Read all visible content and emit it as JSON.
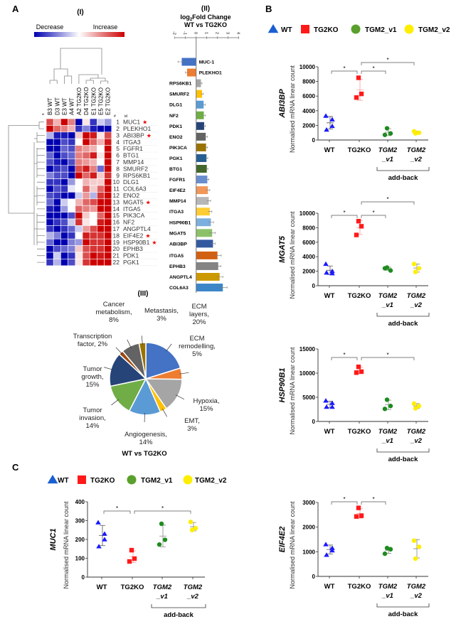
{
  "panel_labels": {
    "a": "A",
    "b": "B",
    "c": "C"
  },
  "legend": [
    {
      "label": "WT",
      "marker": "triangle",
      "color": "#1a5fd0"
    },
    {
      "label": "TG2KO",
      "marker": "square",
      "color": "#ff1a1a"
    },
    {
      "label": "TGM2_v1",
      "marker": "circle",
      "color": "#5aa02c"
    },
    {
      "label": "TGM2_v2",
      "marker": "circle",
      "color": "#ffee00"
    }
  ],
  "chart_data": [
    {
      "type": "heatmap",
      "panel": "(I)",
      "scale": {
        "low_label": "Decrease",
        "high_label": "Increase",
        "low_color": "#0000b0",
        "mid_color": "#ffffff",
        "high_color": "#cc0000"
      },
      "header_s": "s",
      "header_num": "#",
      "header_id": "id",
      "star_symbol": "★",
      "columns": [
        "B3 WT",
        "D3 WT",
        "E3 WT",
        "A4 WT",
        "A2 TG2KO",
        "D4 TG2KO",
        "E1 TG2KO",
        "E5 TG2KO",
        "E2 TG2KO"
      ],
      "rows": [
        {
          "num": "1",
          "id": "MUC1",
          "star": true,
          "values": [
            0.7,
            0.3,
            1,
            0.5,
            -1,
            0.1,
            -0.8,
            -0.2,
            -0.4
          ]
        },
        {
          "num": "2",
          "id": "PLEKHO1",
          "star": false,
          "values": [
            1,
            0.6,
            0.5,
            0.3,
            -0.8,
            -0.5,
            -0.9,
            -1,
            -1
          ]
        },
        {
          "num": "3",
          "id": "ABI3BP",
          "star": true,
          "values": [
            -0.3,
            -0.9,
            -0.9,
            -1,
            0.2,
            1,
            0.9,
            0.1,
            0.7
          ]
        },
        {
          "num": "4",
          "id": "ITGA3",
          "star": false,
          "values": [
            -1,
            -1,
            -0.7,
            -0.8,
            0,
            1,
            0.6,
            0.3,
            0.9
          ]
        },
        {
          "num": "5",
          "id": "FGFR1",
          "star": false,
          "values": [
            -1,
            -1,
            -0.6,
            -0.7,
            0.5,
            0.4,
            0.3,
            0,
            1
          ]
        },
        {
          "num": "6",
          "id": "BTG1",
          "star": false,
          "values": [
            -0.6,
            -1,
            -0.7,
            -0.6,
            0.5,
            0.6,
            0.9,
            0.1,
            1
          ]
        },
        {
          "num": "7",
          "id": "MMP14",
          "star": false,
          "values": [
            -0.7,
            -0.9,
            -1,
            -0.7,
            0.5,
            0.4,
            0.3,
            0,
            1
          ]
        },
        {
          "num": "8",
          "id": "SMURF2",
          "star": false,
          "values": [
            -1,
            -0.8,
            -0.7,
            -1,
            0.7,
            0.9,
            0.5,
            -0.6,
            1
          ]
        },
        {
          "num": "9",
          "id": "RPS6KB1",
          "star": false,
          "values": [
            -0.5,
            -0.7,
            -0.7,
            -1,
            1,
            0.6,
            0.9,
            0.2,
            0.8
          ]
        },
        {
          "num": "10",
          "id": "DLG1",
          "star": false,
          "values": [
            -0.8,
            -0.8,
            -1,
            -0.4,
            0,
            0.3,
            0.2,
            0.2,
            1
          ]
        },
        {
          "num": "11",
          "id": "COL6A3",
          "star": false,
          "values": [
            -1,
            -0.7,
            -0.8,
            -0.1,
            0,
            0.6,
            0.2,
            0.6,
            1
          ]
        },
        {
          "num": "12",
          "id": "ENO2",
          "star": false,
          "values": [
            -0.7,
            -0.8,
            -1,
            -1,
            -0.2,
            0.4,
            -0.3,
            0.8,
            1
          ]
        },
        {
          "num": "13",
          "id": "MGAT5",
          "star": true,
          "values": [
            -0.6,
            -1,
            -0.2,
            0,
            0.3,
            0.6,
            0.7,
            1,
            1
          ]
        },
        {
          "num": "14",
          "id": "ITGA5",
          "star": false,
          "values": [
            -0.9,
            -1,
            -0.4,
            0,
            0.6,
            0.5,
            0.4,
            1,
            1
          ]
        },
        {
          "num": "15",
          "id": "PIK3CA",
          "star": false,
          "values": [
            -1,
            -1,
            -1,
            -0.7,
            1,
            0.2,
            0,
            0.6,
            1
          ]
        },
        {
          "num": "16",
          "id": "NF2",
          "star": false,
          "values": [
            -1,
            -0.8,
            -0.7,
            -0.2,
            0.8,
            0.1,
            0,
            0.9,
            1
          ]
        },
        {
          "num": "17",
          "id": "ANGPTL4",
          "star": false,
          "values": [
            -0.8,
            -1,
            -0.8,
            -0.6,
            -0.2,
            0.4,
            0.7,
            1,
            1
          ]
        },
        {
          "num": "18",
          "id": "EIF4E2",
          "star": true,
          "values": [
            -0.3,
            -0.5,
            -1,
            -0.8,
            0,
            0.9,
            0.8,
            0.8,
            1
          ]
        },
        {
          "num": "19",
          "id": "HSP90B1",
          "star": true,
          "values": [
            -0.6,
            -1,
            -1,
            -0.5,
            -0.4,
            1,
            0.8,
            0.8,
            1
          ]
        },
        {
          "num": "20",
          "id": "EPHB3",
          "star": false,
          "values": [
            -1,
            -0.7,
            -0.6,
            -0.5,
            0.2,
            0.7,
            0.8,
            0.8,
            1
          ]
        },
        {
          "num": "21",
          "id": "PDK1",
          "star": false,
          "values": [
            -1,
            -0.2,
            -1,
            -0.8,
            0.1,
            0.7,
            1,
            0.9,
            1
          ]
        },
        {
          "num": "22",
          "id": "PGK1",
          "star": false,
          "values": [
            -0.8,
            -0.3,
            -1,
            -0.7,
            0.1,
            0.8,
            1,
            1,
            1
          ]
        }
      ]
    },
    {
      "type": "bar",
      "orientation": "horizontal",
      "panel": "(II)",
      "title_prefix": "log",
      "title_subscript": "2",
      "title_rest": "Fold Change",
      "title_line2": "WT vs TG2KO",
      "xlim": [
        -2,
        4
      ],
      "ticks": [
        "-2",
        "-1",
        "0",
        "1",
        "2",
        "3",
        "4"
      ],
      "categories": [
        "MUC-1",
        "PLEKHO1",
        "RPS6KB1",
        "SMURF2",
        "DLG1",
        "NF2",
        "PDK1",
        "ENO2",
        "PIK3CA",
        "PGK1",
        "BTG1",
        "FGFR1",
        "EIF4E2",
        "MMP14",
        "ITGA3",
        "HSP90B1",
        "MGAT5",
        "ABI3BP",
        "ITGA5",
        "EPHB3",
        "ANGPTL4",
        "COL6A3"
      ],
      "values": [
        -1.35,
        -0.85,
        0.45,
        0.55,
        0.7,
        0.72,
        0.75,
        0.9,
        0.93,
        0.97,
        1.0,
        1.05,
        1.1,
        1.18,
        1.28,
        1.38,
        1.5,
        1.58,
        2.0,
        2.07,
        2.2,
        2.5
      ],
      "errors": [
        0.35,
        0.15,
        0.1,
        0.12,
        0.15,
        0.15,
        0.12,
        0.15,
        0.12,
        0.12,
        0.1,
        0.15,
        0.18,
        0.18,
        0.2,
        0.25,
        0.3,
        0.2,
        0.35,
        0.25,
        0.3,
        0.4
      ],
      "colors": [
        "#4472c4",
        "#ed7d31",
        "#a5a5a5",
        "#ffc000",
        "#5b9bd5",
        "#70ad47",
        "#264478",
        "#636363",
        "#997300",
        "#255e91",
        "#43682b",
        "#698ed0",
        "#f1975a",
        "#b7b7b7",
        "#ffcd33",
        "#7cafdd",
        "#8cc168",
        "#335aa1",
        "#d26012",
        "#848484",
        "#cc9a00",
        "#3a86c8"
      ]
    },
    {
      "type": "pie",
      "panel": "(III)",
      "title": "WT vs TG2KO",
      "slices": [
        {
          "label_lines": [
            "ECM",
            "layers,",
            "20%"
          ],
          "value": 20,
          "color": "#4472c4"
        },
        {
          "label_lines": [
            "ECM",
            "remodelling,",
            "5%"
          ],
          "value": 5,
          "color": "#ed7d31"
        },
        {
          "label_lines": [
            "Hypoxia,",
            "15%"
          ],
          "value": 15,
          "color": "#a5a5a5"
        },
        {
          "label_lines": [
            "EMT,",
            "3%"
          ],
          "value": 3,
          "color": "#ffc000"
        },
        {
          "label_lines": [
            "Angiogenesis,",
            "14%"
          ],
          "value": 14,
          "color": "#5b9bd5"
        },
        {
          "label_lines": [
            "Tumor",
            "invasion,",
            "14%"
          ],
          "value": 14,
          "color": "#70ad47"
        },
        {
          "label_lines": [
            "Tumor",
            "growth,",
            "15%"
          ],
          "value": 15,
          "color": "#264478"
        },
        {
          "label_lines": [
            "Transcription",
            "factor, 2%"
          ],
          "value": 2,
          "color": "#9e480e"
        },
        {
          "label_lines": [
            "Cancer",
            "metabolism,",
            "8%"
          ],
          "value": 8,
          "color": "#636363"
        },
        {
          "label_lines": [
            "Metastasis,",
            "3%"
          ],
          "value": 3,
          "color": "#997300"
        }
      ]
    },
    {
      "type": "scatter",
      "gene": "ABI3BP",
      "ylabel": "Normalised mRNA linear count",
      "ylim": [
        0,
        10000
      ],
      "yticks": [
        "0",
        "2000",
        "4000",
        "6000",
        "8000",
        "10000"
      ],
      "categories": [
        {
          "line1": "WT"
        },
        {
          "line1": "TG2KO"
        },
        {
          "line1": "TGM2",
          "line2": "_v1"
        },
        {
          "line1": "TGM2",
          "line2": "_v2"
        }
      ],
      "groups": [
        [
          3300,
          2800,
          1900,
          1400
        ],
        [
          8500,
          6300,
          5800
        ],
        [
          1600,
          900,
          700
        ],
        [
          1200,
          1000,
          900
        ]
      ],
      "significance": [
        [
          0,
          1
        ],
        [
          1,
          2
        ],
        [
          1,
          3
        ]
      ],
      "sig_label": "*",
      "addback_label": "add-back"
    },
    {
      "type": "scatter",
      "gene": "MGAT5",
      "ylabel": "Normalised mRNA linear count",
      "ylim": [
        0,
        10000
      ],
      "yticks": [
        "0",
        "2000",
        "4000",
        "6000",
        "8000",
        "10000"
      ],
      "categories": [
        {
          "line1": "WT"
        },
        {
          "line1": "TG2KO"
        },
        {
          "line1": "TGM2",
          "line2": "_v1"
        },
        {
          "line1": "TGM2",
          "line2": "_v2"
        }
      ],
      "groups": [
        [
          3000,
          2000,
          1700,
          1800
        ],
        [
          8900,
          8200,
          7000
        ],
        [
          2500,
          2100,
          2400
        ],
        [
          3000,
          2400,
          1900
        ]
      ],
      "significance": [
        [
          0,
          1
        ],
        [
          1,
          2
        ],
        [
          1,
          3
        ]
      ],
      "sig_label": "*",
      "addback_label": "add-back"
    },
    {
      "type": "scatter",
      "gene": "HSP90B1",
      "ylabel": "Normalised mRNA linear count",
      "ylim": [
        0,
        15000
      ],
      "yticks": [
        "0",
        "5000",
        "10000",
        "15000"
      ],
      "categories": [
        {
          "line1": "WT"
        },
        {
          "line1": "TG2KO"
        },
        {
          "line1": "TGM2",
          "line2": "_v1"
        },
        {
          "line1": "TGM2",
          "line2": "_v2"
        }
      ],
      "groups": [
        [
          4300,
          3800,
          3000,
          3000
        ],
        [
          11300,
          10300,
          10100
        ],
        [
          4500,
          3200,
          2600
        ],
        [
          3700,
          3200,
          2700
        ]
      ],
      "significance": [
        [
          0,
          1
        ],
        [
          1,
          3
        ]
      ],
      "sig_label": "*",
      "addback_label": "add-back"
    },
    {
      "type": "scatter",
      "gene": "EIF4E2",
      "ylabel": "Normalised mRNA linear count",
      "ylim": [
        0,
        3000
      ],
      "yticks": [
        "0",
        "1000",
        "2000",
        "3000"
      ],
      "categories": [
        {
          "line1": "WT"
        },
        {
          "line1": "TG2KO"
        },
        {
          "line1": "TGM2",
          "line2": "_v1"
        },
        {
          "line1": "TGM2",
          "line2": "_v2"
        }
      ],
      "groups": [
        [
          1300,
          1150,
          1050,
          870
        ],
        [
          2780,
          2460,
          2430
        ],
        [
          1150,
          1100,
          920
        ],
        [
          1450,
          1200,
          720
        ]
      ],
      "significance": [
        [
          0,
          1
        ],
        [
          1,
          2
        ]
      ],
      "sig_label": "*",
      "addback_label": "add-back"
    },
    {
      "type": "scatter",
      "gene": "MUC1",
      "ylabel": "Normalised mRNA linear count",
      "ylim": [
        0,
        400
      ],
      "yticks": [
        "0",
        "100",
        "200",
        "300",
        "400"
      ],
      "categories": [
        {
          "line1": "WT"
        },
        {
          "line1": "TG2KO"
        },
        {
          "line1": "TGM2",
          "line2": "_v1"
        },
        {
          "line1": "TGM2",
          "line2": "_v2"
        }
      ],
      "groups": [
        [
          290,
          230,
          200,
          163
        ],
        [
          143,
          98,
          83
        ],
        [
          283,
          198,
          173
        ],
        [
          293,
          260,
          250
        ]
      ],
      "significance": [
        [
          0,
          1
        ],
        [
          1,
          3
        ]
      ],
      "sig_label": "*",
      "addback_label": "add-back"
    }
  ]
}
